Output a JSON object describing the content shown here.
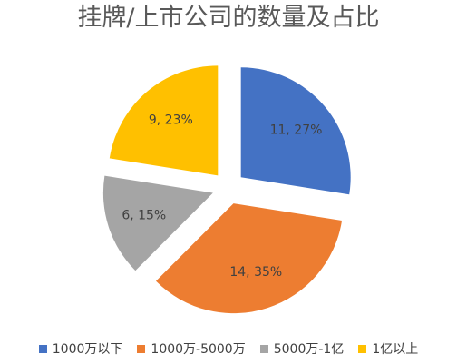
{
  "chart_data": {
    "type": "pie",
    "title": "挂牌/上市公司的数量及占比",
    "categories": [
      "1000万以下",
      "1000万-5000万",
      "5000万-1亿",
      "1亿以上"
    ],
    "values": [
      11,
      14,
      6,
      9
    ],
    "percent_labels": [
      "11, 27%",
      "14, 35%",
      "6, 15%",
      "9, 23%"
    ],
    "colors": [
      "#4472C4",
      "#ED7D31",
      "#A5A5A5",
      "#FFC000"
    ],
    "legend": "bottom",
    "exploded": true
  }
}
